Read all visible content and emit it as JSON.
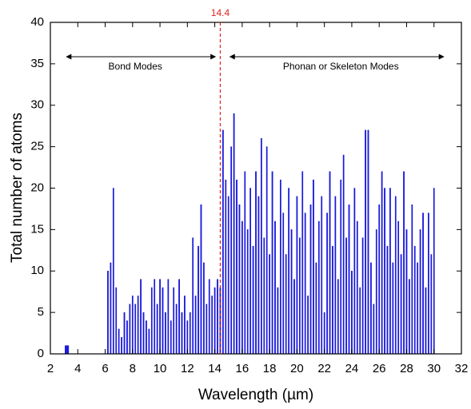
{
  "chart_data": {
    "type": "bar",
    "xlabel": "Wavelength (µm)",
    "ylabel": "Total number of atoms",
    "x": [
      3.1,
      3.2,
      3.3,
      6.2,
      6.4,
      6.6,
      6.8,
      7.0,
      7.2,
      7.4,
      7.6,
      7.8,
      8.0,
      8.2,
      8.4,
      8.6,
      8.8,
      9.0,
      9.2,
      9.4,
      9.6,
      9.8,
      10.0,
      10.2,
      10.4,
      10.6,
      10.8,
      11.0,
      11.2,
      11.4,
      11.6,
      11.8,
      12.0,
      12.2,
      12.4,
      12.6,
      12.8,
      13.0,
      13.2,
      13.4,
      13.6,
      13.8,
      14.0,
      14.2,
      14.4,
      14.6,
      14.8,
      15.0,
      15.2,
      15.4,
      15.6,
      15.8,
      16.0,
      16.2,
      16.4,
      16.6,
      16.8,
      17.0,
      17.2,
      17.4,
      17.6,
      17.8,
      18.0,
      18.2,
      18.4,
      18.6,
      18.8,
      19.0,
      19.2,
      19.4,
      19.6,
      19.8,
      20.0,
      20.2,
      20.4,
      20.6,
      20.8,
      21.0,
      21.2,
      21.4,
      21.6,
      21.8,
      22.0,
      22.2,
      22.4,
      22.6,
      22.8,
      23.0,
      23.2,
      23.4,
      23.6,
      23.8,
      24.0,
      24.2,
      24.4,
      24.6,
      24.8,
      25.0,
      25.2,
      25.4,
      25.6,
      25.8,
      26.0,
      26.2,
      26.4,
      26.6,
      26.8,
      27.0,
      27.2,
      27.4,
      27.6,
      27.8,
      28.0,
      28.2,
      28.4,
      28.6,
      28.8,
      29.0,
      29.2,
      29.4,
      29.6,
      29.8,
      30.0
    ],
    "values": [
      1,
      1,
      1,
      10,
      11,
      20,
      8,
      3,
      2,
      5,
      4,
      6,
      7,
      6,
      7,
      9,
      5,
      4,
      3,
      8,
      9,
      6,
      9,
      8,
      5,
      9,
      4,
      8,
      6,
      9,
      5,
      7,
      4,
      5,
      14,
      7,
      13,
      18,
      11,
      6,
      9,
      7,
      8,
      9,
      8,
      27,
      21,
      19,
      25,
      29,
      21,
      18,
      16,
      22,
      15,
      20,
      13,
      22,
      19,
      26,
      14,
      25,
      12,
      22,
      16,
      8,
      21,
      17,
      12,
      20,
      15,
      9,
      19,
      14,
      22,
      17,
      7,
      18,
      21,
      11,
      16,
      19,
      5,
      17,
      22,
      13,
      19,
      9,
      21,
      24,
      14,
      18,
      10,
      20,
      16,
      8,
      14,
      27,
      27,
      11,
      6,
      15,
      18,
      22,
      20,
      13,
      20,
      11,
      19,
      16,
      12,
      22,
      15,
      9,
      18,
      13,
      11,
      15,
      17,
      8,
      17,
      12,
      20
    ],
    "color": "#1a1aff",
    "xlim": [
      2,
      32
    ],
    "xticks": [
      2,
      4,
      6,
      8,
      10,
      12,
      14,
      16,
      18,
      20,
      22,
      24,
      26,
      28,
      30,
      32
    ],
    "ylim": [
      0,
      40
    ],
    "yticks": [
      0,
      5,
      10,
      15,
      20,
      25,
      30,
      35,
      40
    ],
    "vline": 14.4,
    "vline_color": "#e02020",
    "annotations": [
      "Bond Modes",
      "Phonan or Skeleton Modes"
    ]
  }
}
